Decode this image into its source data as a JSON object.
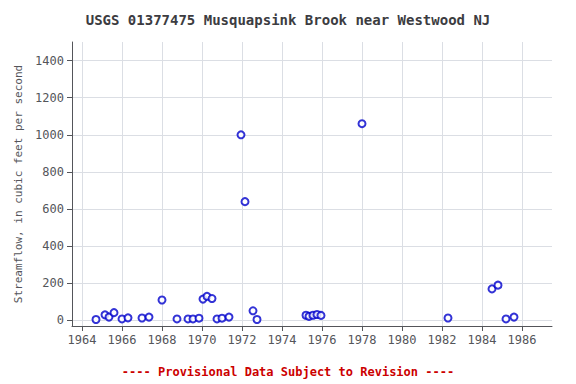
{
  "chart_data": {
    "type": "scatter",
    "title": "USGS 01377475 Musquapsink Brook near Westwood NJ",
    "ylabel": "Streamflow, in cubic feet per second",
    "x": [
      1964.7,
      1965.15,
      1965.35,
      1965.6,
      1966.0,
      1966.3,
      1967.0,
      1967.35,
      1968.0,
      1968.75,
      1969.3,
      1969.55,
      1969.85,
      1970.05,
      1970.25,
      1970.5,
      1970.75,
      1971.0,
      1971.35,
      1971.95,
      1972.15,
      1972.55,
      1972.75,
      1975.2,
      1975.35,
      1975.55,
      1975.75,
      1975.95,
      1978.0,
      1982.3,
      1984.5,
      1984.8,
      1985.2,
      1985.6
    ],
    "values": [
      5,
      30,
      18,
      42,
      8,
      14,
      13,
      18,
      110,
      8,
      8,
      8,
      12,
      115,
      130,
      118,
      8,
      12,
      18,
      1000,
      640,
      52,
      5,
      28,
      22,
      28,
      32,
      27,
      1060,
      13,
      170,
      190,
      8,
      18
    ],
    "color": "#0000cc",
    "marker": "circle_open",
    "xlim": [
      1963.5,
      1987.5
    ],
    "ylim": [
      -30,
      1500
    ],
    "xticks": [
      1964,
      1966,
      1968,
      1970,
      1972,
      1974,
      1976,
      1978,
      1980,
      1982,
      1984,
      1986
    ],
    "yticks": [
      0,
      200,
      400,
      600,
      800,
      1000,
      1200,
      1400
    ],
    "grid": true,
    "annotations": [
      {
        "text": "---- Provisional Data Subject to Revision ----",
        "color": "#cc0000"
      }
    ]
  }
}
